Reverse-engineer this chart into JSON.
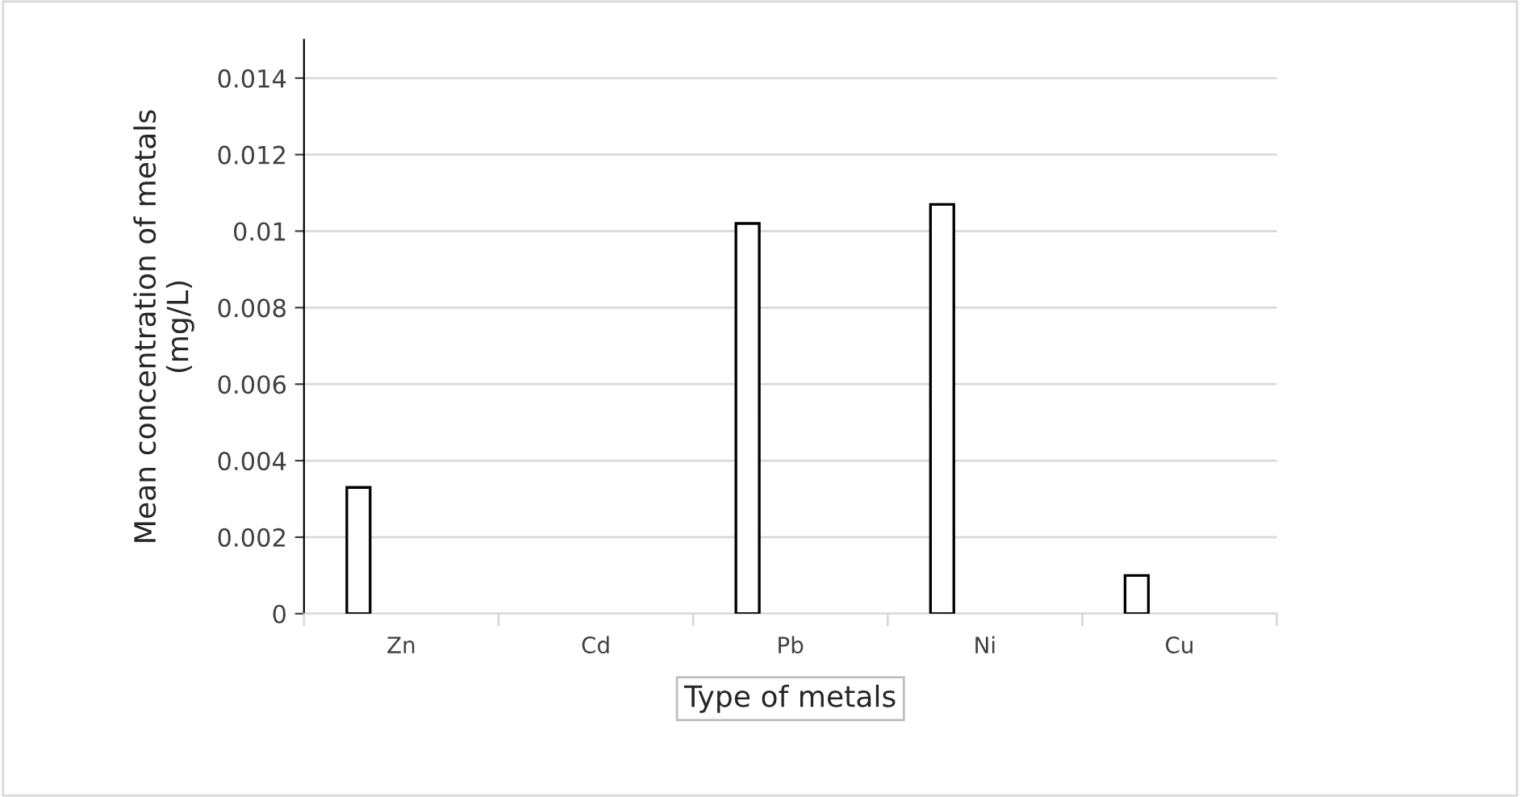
{
  "chart_data": {
    "type": "bar",
    "xlabel": "Type of metals",
    "ylabel": "Mean concentration of metals\n(mg/L)",
    "categories": [
      "Zn",
      "Cd",
      "Pb",
      "Ni",
      "Cu"
    ],
    "series": [
      {
        "color": "#ffffff",
        "values": [
          0.0033,
          null,
          0.0102,
          0.0107,
          0.001
        ]
      }
    ],
    "ylim": [
      0,
      0.015
    ],
    "yticks": [
      {
        "value": 0,
        "label": "0"
      },
      0.002,
      0.004,
      0.006,
      0.008,
      {
        "value": 0.01,
        "label": "0.01"
      },
      0.012,
      0.014
    ],
    "grid": "y",
    "legend": false
  }
}
